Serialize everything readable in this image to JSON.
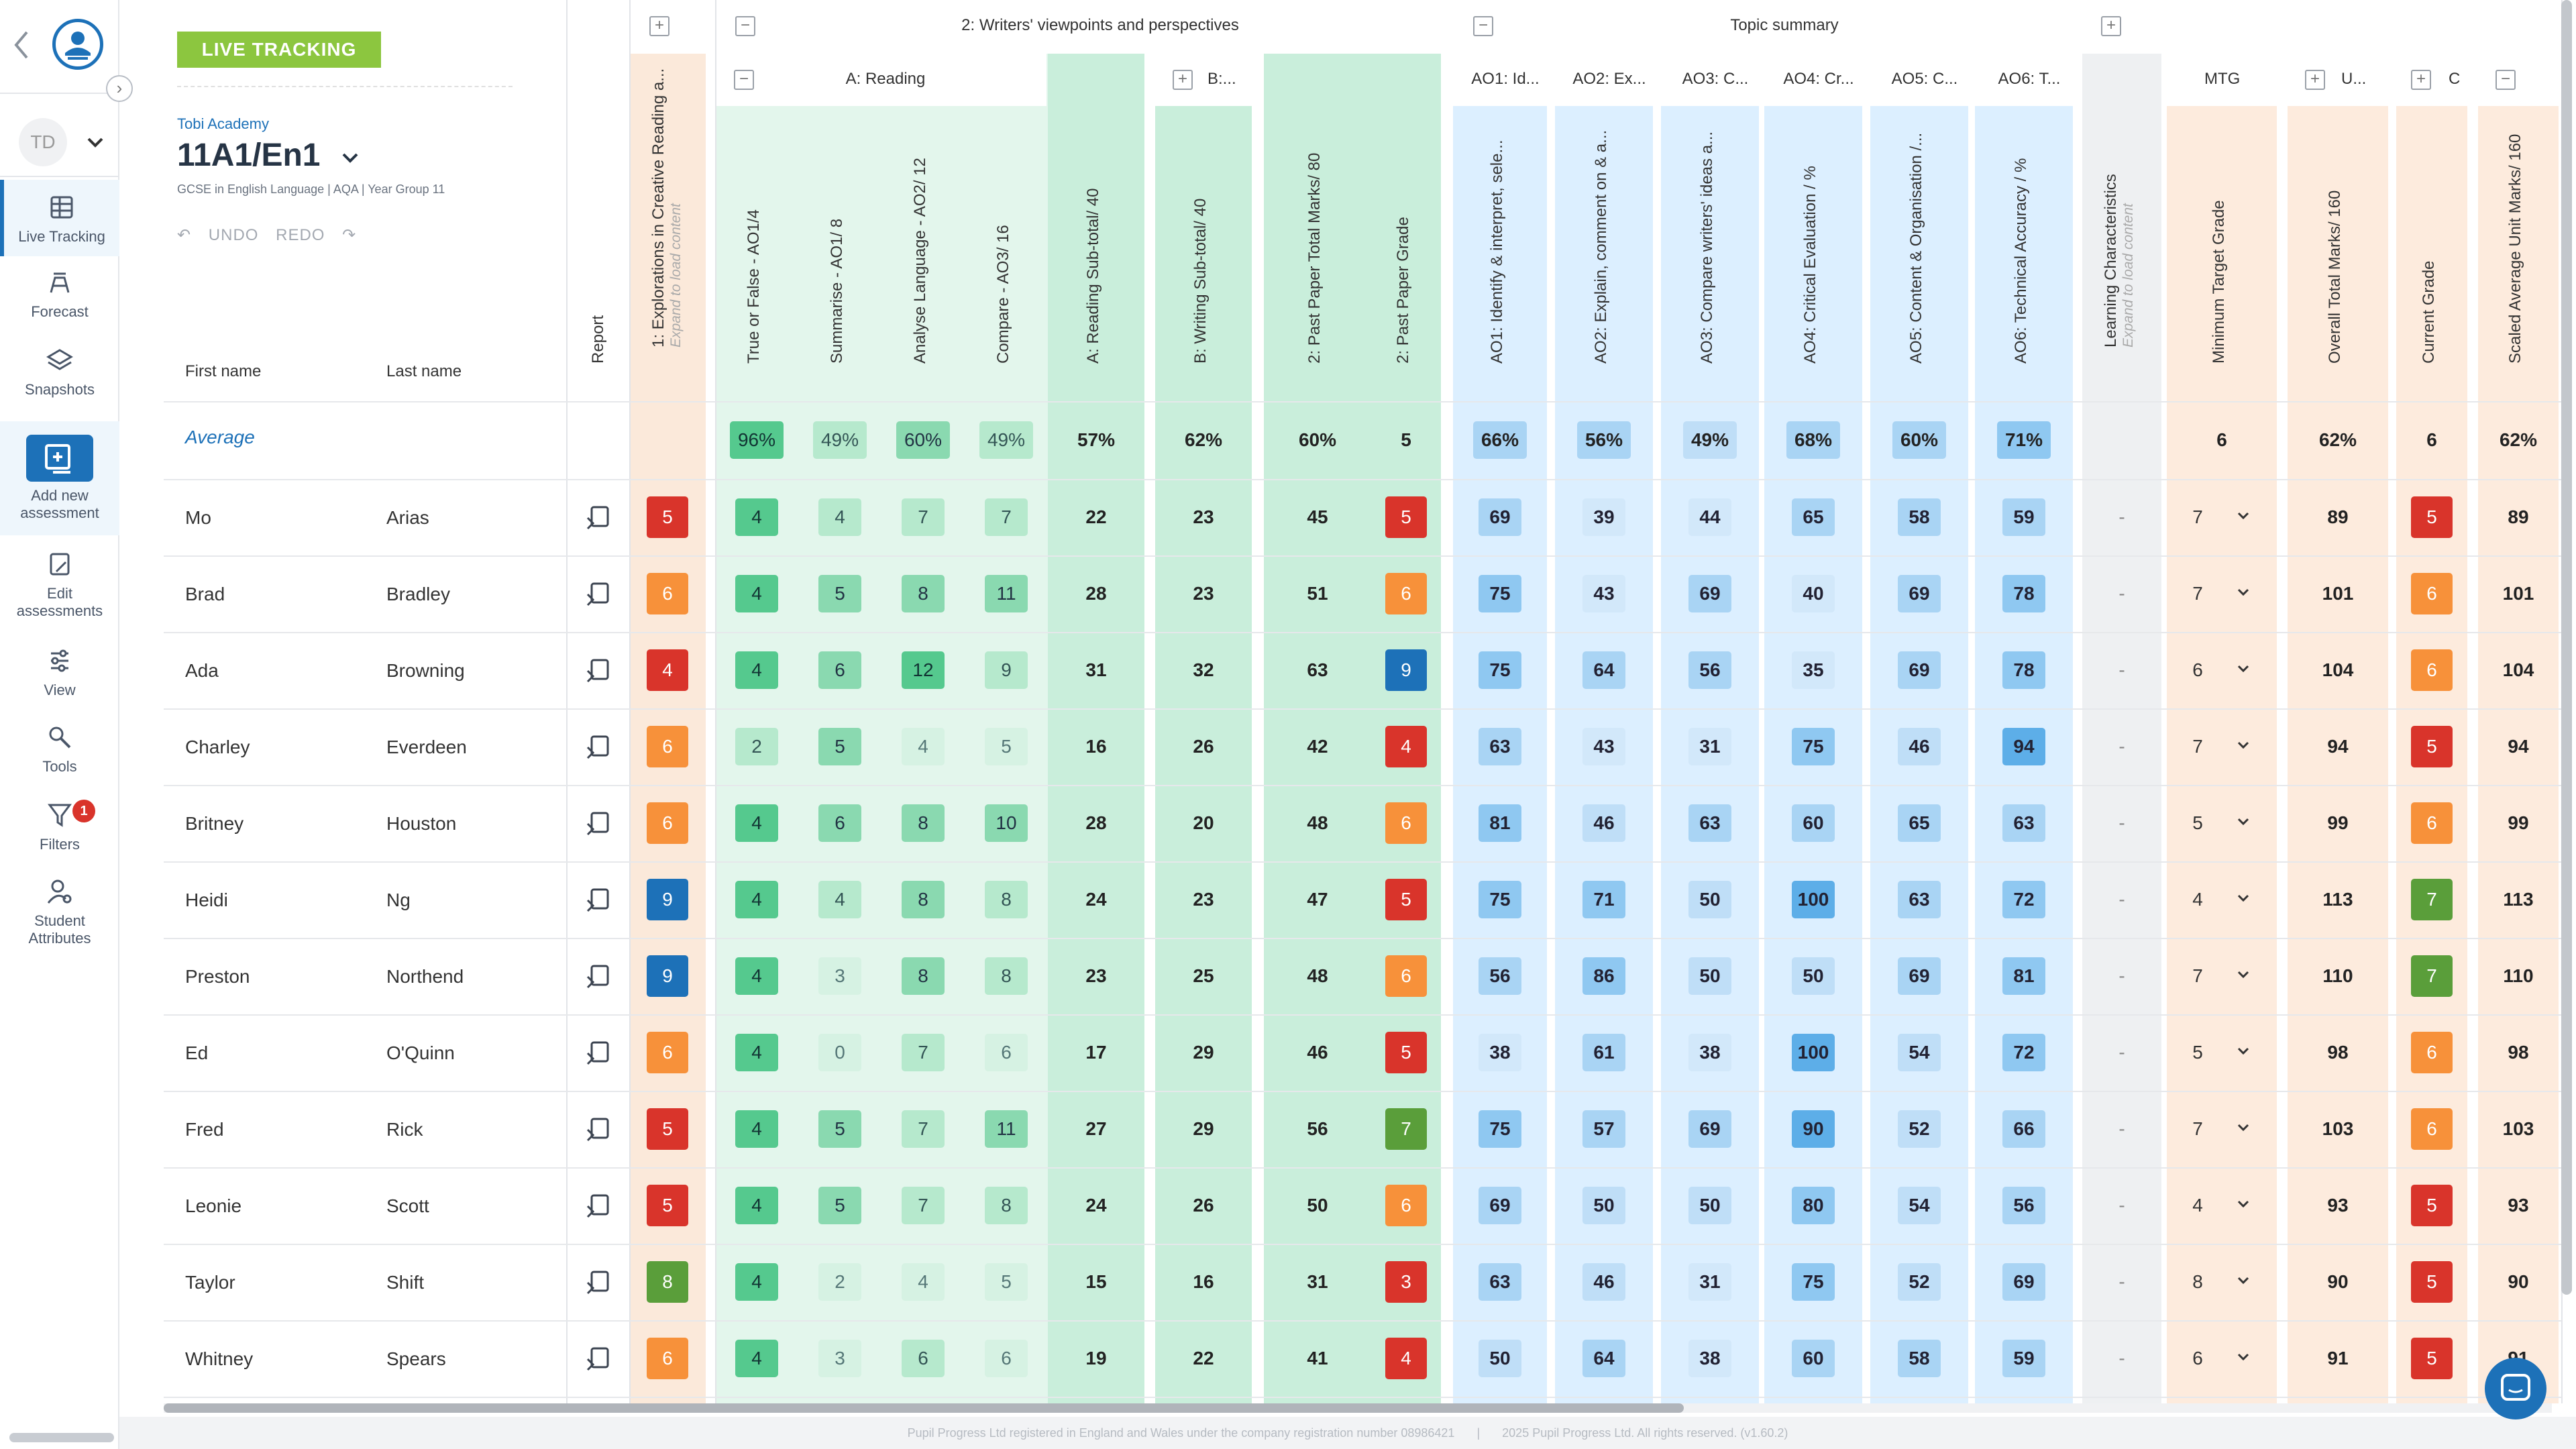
{
  "nav": {
    "user_initials": "TD",
    "items": [
      {
        "label": "Live Tracking",
        "icon": "table-icon"
      },
      {
        "label": "Forecast",
        "icon": "forecast-icon"
      },
      {
        "label": "Snapshots",
        "icon": "layers-icon"
      },
      {
        "label": "Add new assessment",
        "icon": "add-assessment-icon"
      },
      {
        "label": "Edit assessments",
        "icon": "edit-icon"
      },
      {
        "label": "View",
        "icon": "sliders-icon"
      },
      {
        "label": "Tools",
        "icon": "tools-icon"
      },
      {
        "label": "Filters",
        "icon": "filter-icon",
        "badge": "1"
      },
      {
        "label": "Student Attributes",
        "icon": "student-icon"
      }
    ]
  },
  "header": {
    "badge": "LIVE TRACKING",
    "school": "Tobi Academy",
    "class_name": "11A1/En1",
    "course": "GCSE in English Language | AQA | Year Group 11",
    "undo": "UNDO",
    "redo": "REDO"
  },
  "groups": {
    "writers": "2: Writers' viewpoints and perspectives",
    "topic": "Topic summary",
    "reading": "A: Reading",
    "writing_short": "B:...",
    "mtg_short": "MTG",
    "u_short": "U...",
    "c_short": "C"
  },
  "sub_headers": [
    "AO1: Id...",
    "AO2: Ex...",
    "AO3: C...",
    "AO4: Cr...",
    "AO5: C...",
    "AO6: T..."
  ],
  "columns": {
    "first_name": "First name",
    "last_name": "Last name",
    "report": "Report",
    "explorations": "1: Explorations in Creative Reading a...",
    "expand_hint": "Expand to load content",
    "tf": "True or False - AO1/4",
    "summ": "Summarise - AO1/ 8",
    "lang": "Analyse Language - AO2/ 12",
    "comp": "Compare - AO3/ 16",
    "rsub": "A: Reading Sub-total/ 40",
    "wsub": "B: Writing Sub-total/ 40",
    "ppt": "2: Past Paper Total Marks/ 80",
    "ppg": "2: Past Paper Grade",
    "ao1": "AO1: Identify & interpret, sele...",
    "ao2": "AO2: Explain, comment on & a...",
    "ao3": "AO3: Compare writers' ideas a...",
    "ao4": "AO4: Critical Evaluation / %",
    "ao5": "AO5: Content & Organisation /...",
    "ao6": "AO6: Technical Accuracy / %",
    "learning": "Learning Characteristics",
    "mtg": "Minimum Target Grade",
    "overall": "Overall Total Marks/ 160",
    "current": "Current Grade",
    "scaled": "Scaled Average Unit Marks/ 160"
  },
  "average": {
    "label": "Average",
    "tf": "96%",
    "summ": "49%",
    "lang": "60%",
    "comp": "49%",
    "rsub": "57%",
    "wsub": "62%",
    "ppt": "60%",
    "ppg": "5",
    "ao1": "66%",
    "ao2": "56%",
    "ao3": "49%",
    "ao4": "68%",
    "ao5": "60%",
    "ao6": "71%",
    "mtg": "6",
    "overall": "62%",
    "current": "6",
    "scaled": "62%"
  },
  "students": [
    {
      "first": "Mo",
      "last": "Arias",
      "g1": "5",
      "tf": "4",
      "summ": "4",
      "lang": "7",
      "comp": "7",
      "rsub": "22",
      "wsub": "23",
      "ppt": "45",
      "ppg": "5",
      "ao1": "69",
      "ao2": "39",
      "ao3": "44",
      "ao4": "65",
      "ao5": "58",
      "ao6": "59",
      "lc": "-",
      "mtg": "7",
      "overall": "89",
      "current": "5",
      "scaled": "89"
    },
    {
      "first": "Brad",
      "last": "Bradley",
      "g1": "6",
      "tf": "4",
      "summ": "5",
      "lang": "8",
      "comp": "11",
      "rsub": "28",
      "wsub": "23",
      "ppt": "51",
      "ppg": "6",
      "ao1": "75",
      "ao2": "43",
      "ao3": "69",
      "ao4": "40",
      "ao5": "69",
      "ao6": "78",
      "lc": "-",
      "mtg": "7",
      "overall": "101",
      "current": "6",
      "scaled": "101"
    },
    {
      "first": "Ada",
      "last": "Browning",
      "g1": "4",
      "tf": "4",
      "summ": "6",
      "lang": "12",
      "comp": "9",
      "rsub": "31",
      "wsub": "32",
      "ppt": "63",
      "ppg": "9",
      "ao1": "75",
      "ao2": "64",
      "ao3": "56",
      "ao4": "35",
      "ao5": "69",
      "ao6": "78",
      "lc": "-",
      "mtg": "6",
      "overall": "104",
      "current": "6",
      "scaled": "104"
    },
    {
      "first": "Charley",
      "last": "Everdeen",
      "g1": "6",
      "tf": "2",
      "summ": "5",
      "lang": "4",
      "comp": "5",
      "rsub": "16",
      "wsub": "26",
      "ppt": "42",
      "ppg": "4",
      "ao1": "63",
      "ao2": "43",
      "ao3": "31",
      "ao4": "75",
      "ao5": "46",
      "ao6": "94",
      "lc": "-",
      "mtg": "7",
      "overall": "94",
      "current": "5",
      "scaled": "94"
    },
    {
      "first": "Britney",
      "last": "Houston",
      "g1": "6",
      "tf": "4",
      "summ": "6",
      "lang": "8",
      "comp": "10",
      "rsub": "28",
      "wsub": "20",
      "ppt": "48",
      "ppg": "6",
      "ao1": "81",
      "ao2": "46",
      "ao3": "63",
      "ao4": "60",
      "ao5": "65",
      "ao6": "63",
      "lc": "-",
      "mtg": "5",
      "overall": "99",
      "current": "6",
      "scaled": "99"
    },
    {
      "first": "Heidi",
      "last": "Ng",
      "g1": "9",
      "tf": "4",
      "summ": "4",
      "lang": "8",
      "comp": "8",
      "rsub": "24",
      "wsub": "23",
      "ppt": "47",
      "ppg": "5",
      "ao1": "75",
      "ao2": "71",
      "ao3": "50",
      "ao4": "100",
      "ao5": "63",
      "ao6": "72",
      "lc": "-",
      "mtg": "4",
      "overall": "113",
      "current": "7",
      "scaled": "113"
    },
    {
      "first": "Preston",
      "last": "Northend",
      "g1": "9",
      "tf": "4",
      "summ": "3",
      "lang": "8",
      "comp": "8",
      "rsub": "23",
      "wsub": "25",
      "ppt": "48",
      "ppg": "6",
      "ao1": "56",
      "ao2": "86",
      "ao3": "50",
      "ao4": "50",
      "ao5": "69",
      "ao6": "81",
      "lc": "-",
      "mtg": "7",
      "overall": "110",
      "current": "7",
      "scaled": "110"
    },
    {
      "first": "Ed",
      "last": "O'Quinn",
      "g1": "6",
      "tf": "4",
      "summ": "0",
      "lang": "7",
      "comp": "6",
      "rsub": "17",
      "wsub": "29",
      "ppt": "46",
      "ppg": "5",
      "ao1": "38",
      "ao2": "61",
      "ao3": "38",
      "ao4": "100",
      "ao5": "54",
      "ao6": "72",
      "lc": "-",
      "mtg": "5",
      "overall": "98",
      "current": "6",
      "scaled": "98"
    },
    {
      "first": "Fred",
      "last": "Rick",
      "g1": "5",
      "tf": "4",
      "summ": "5",
      "lang": "7",
      "comp": "11",
      "rsub": "27",
      "wsub": "29",
      "ppt": "56",
      "ppg": "7",
      "ao1": "75",
      "ao2": "57",
      "ao3": "69",
      "ao4": "90",
      "ao5": "52",
      "ao6": "66",
      "lc": "-",
      "mtg": "7",
      "overall": "103",
      "current": "6",
      "scaled": "103"
    },
    {
      "first": "Leonie",
      "last": "Scott",
      "g1": "5",
      "tf": "4",
      "summ": "5",
      "lang": "7",
      "comp": "8",
      "rsub": "24",
      "wsub": "26",
      "ppt": "50",
      "ppg": "6",
      "ao1": "69",
      "ao2": "50",
      "ao3": "50",
      "ao4": "80",
      "ao5": "54",
      "ao6": "56",
      "lc": "-",
      "mtg": "4",
      "overall": "93",
      "current": "5",
      "scaled": "93"
    },
    {
      "first": "Taylor",
      "last": "Shift",
      "g1": "8",
      "tf": "4",
      "summ": "2",
      "lang": "4",
      "comp": "5",
      "rsub": "15",
      "wsub": "16",
      "ppt": "31",
      "ppg": "3",
      "ao1": "63",
      "ao2": "46",
      "ao3": "31",
      "ao4": "75",
      "ao5": "52",
      "ao6": "69",
      "lc": "-",
      "mtg": "8",
      "overall": "90",
      "current": "5",
      "scaled": "90"
    },
    {
      "first": "Whitney",
      "last": "Spears",
      "g1": "6",
      "tf": "4",
      "summ": "3",
      "lang": "6",
      "comp": "6",
      "rsub": "19",
      "wsub": "22",
      "ppt": "41",
      "ppg": "4",
      "ao1": "50",
      "ao2": "64",
      "ao3": "38",
      "ao4": "60",
      "ao5": "58",
      "ao6": "59",
      "lc": "-",
      "mtg": "6",
      "overall": "91",
      "current": "5",
      "scaled": "91"
    }
  ],
  "footer": {
    "company": "Pupil Progress Ltd registered in England and Wales under the company registration number 08986421",
    "copyright": "2025 Pupil Progress Ltd. All rights reserved. (v1.60.2)"
  },
  "colors": {
    "grade": {
      "3": "#d9342b",
      "4": "#d9342b",
      "5": "#d9342b",
      "6": "#f7913a",
      "7": "#5a9e3a",
      "8": "#5a9e3a",
      "9": "#1d71b8"
    },
    "current_grade": {
      "5": "#d9342b",
      "6": "#f7913a",
      "7": "#5a9e3a"
    },
    "accent": "#1d71b8",
    "live_badge": "#8cc63f"
  }
}
